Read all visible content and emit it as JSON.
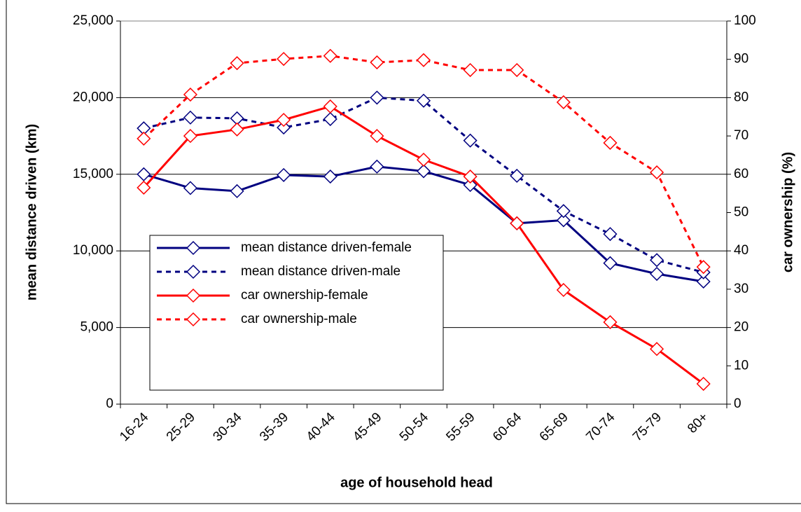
{
  "chart_data": {
    "type": "line",
    "x_label": "age of household head",
    "y_label": "mean distance driven (km)",
    "y2_label": "car ownership (%)",
    "categories": [
      "16-24",
      "25-29",
      "30-34",
      "35-39",
      "40-44",
      "45-49",
      "50-54",
      "55-59",
      "60-64",
      "65-69",
      "70-74",
      "75-79",
      "80+"
    ],
    "ylim": [
      0,
      25000
    ],
    "yticks": [
      0,
      {
        "value": 5000,
        "label": "5,000"
      },
      {
        "value": 10000,
        "label": "10,000"
      },
      {
        "value": 15000,
        "label": "15,000"
      },
      {
        "value": 20000,
        "label": "20,000"
      },
      {
        "value": 25000,
        "label": "25,000"
      }
    ],
    "y2lim": [
      0,
      100
    ],
    "y2ticks": [
      0,
      10,
      20,
      30,
      40,
      50,
      60,
      70,
      80,
      90,
      100
    ],
    "grid": true,
    "series": [
      {
        "name": "mean distance driven-female",
        "color": "#000080",
        "dashed": false,
        "values": [
          15000,
          14100,
          13900,
          14950,
          14850,
          15500,
          15200,
          14300,
          11800,
          12000,
          9200,
          8500,
          8000
        ]
      },
      {
        "name": "mean distance driven-male",
        "color": "#000080",
        "dashed": true,
        "values": [
          18000,
          18700,
          18650,
          18050,
          18600,
          20000,
          19800,
          17200,
          14900,
          12600,
          11100,
          9400,
          8600
        ]
      },
      {
        "name": "car ownership-female",
        "color": "#ff0000",
        "dashed": false,
        "axis": "y2",
        "values": [
          56.5,
          70,
          71.7,
          74.2,
          77.7,
          70,
          63.8,
          59.4,
          47.2,
          29.8,
          21.4,
          14.4,
          5.3
        ]
      },
      {
        "name": "car ownership-male",
        "color": "#ff0000",
        "dashed": true,
        "axis": "y2",
        "values": [
          69.3,
          80.8,
          89,
          90.1,
          90.9,
          89.2,
          89.8,
          87.2,
          87.2,
          78.8,
          68.2,
          60.5,
          35.8
        ]
      }
    ]
  }
}
